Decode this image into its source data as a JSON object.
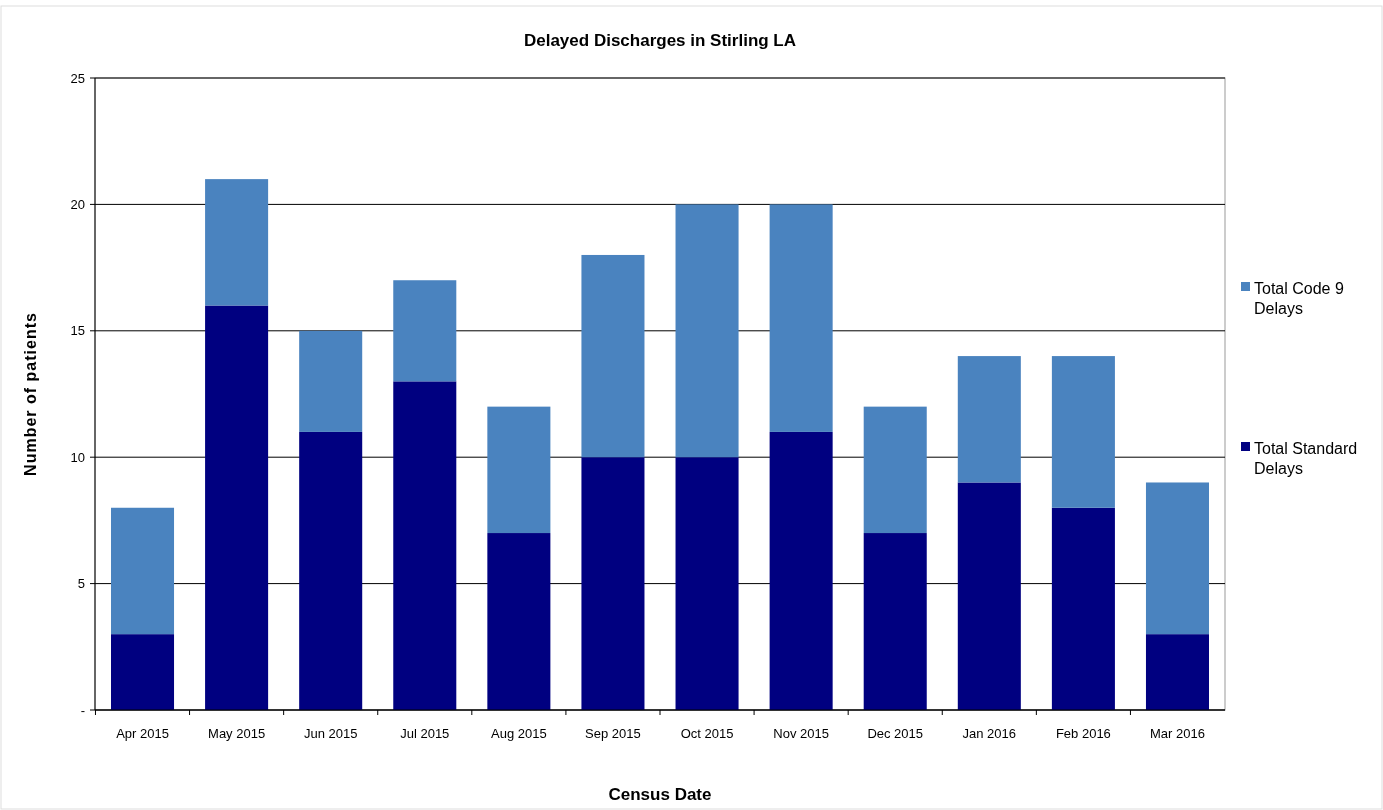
{
  "chart_data": {
    "type": "bar",
    "title": "Delayed Discharges in Stirling LA",
    "xlabel": "Census Date",
    "ylabel": "Number of patients",
    "categories": [
      "Apr 2015",
      "May 2015",
      "Jun 2015",
      "Jul 2015",
      "Aug 2015",
      "Sep 2015",
      "Oct 2015",
      "Nov 2015",
      "Dec 2015",
      "Jan 2016",
      "Feb 2016",
      "Mar 2016"
    ],
    "stacked": true,
    "series": [
      {
        "name": "Total Standard Delays",
        "color": "#000080",
        "values": [
          3,
          16,
          11,
          13,
          7,
          10,
          10,
          11,
          7,
          9,
          8,
          3
        ]
      },
      {
        "name": "Total Code 9 Delays",
        "color": "#4a83bf",
        "values": [
          5,
          5,
          4,
          4,
          5,
          8,
          10,
          9,
          5,
          5,
          6,
          6
        ]
      }
    ],
    "ylim": [
      0,
      25
    ],
    "yticks": [
      {
        "value": 0,
        "label": "-"
      },
      5,
      10,
      15,
      20,
      25
    ],
    "grid": "y",
    "legend": "right"
  }
}
